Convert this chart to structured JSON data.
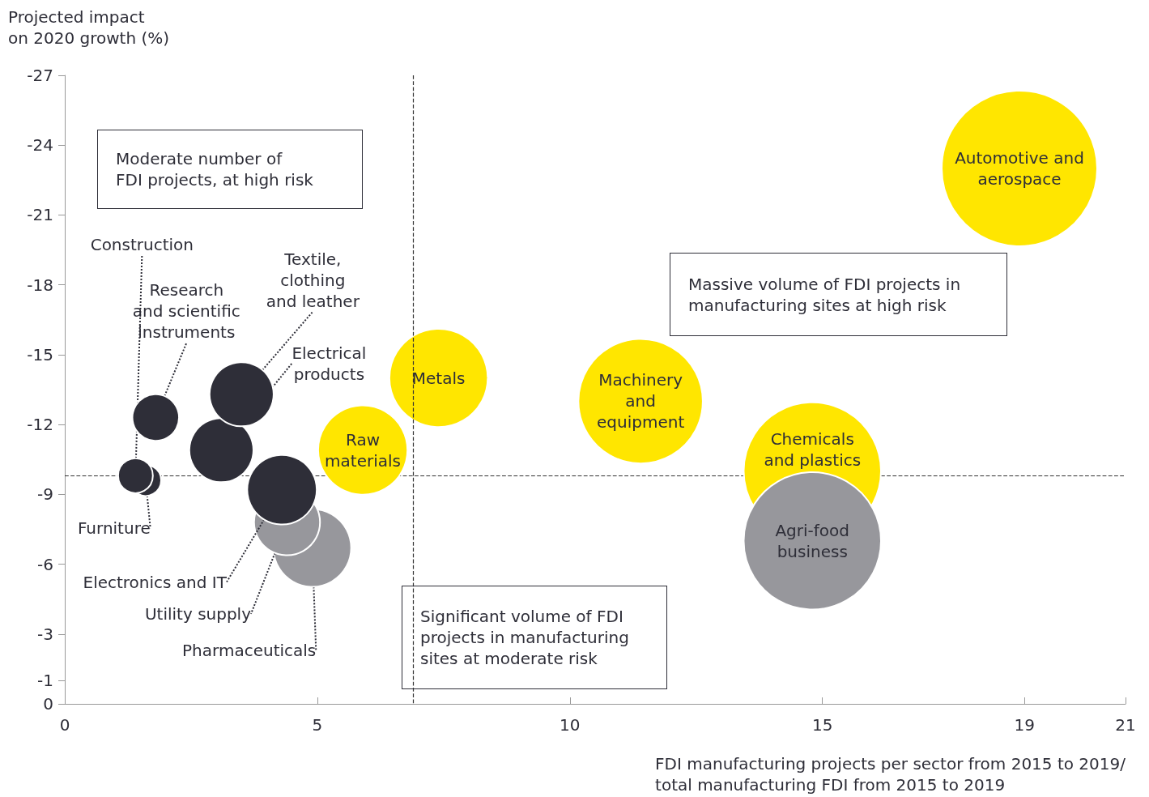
{
  "chart_data": {
    "type": "bubble",
    "xlabel": "FDI manufacturing projects per sector from 2015 to 2019/\ntotal manufacturing FDI from 2015 to 2019",
    "ylabel": "Projected impact\non 2020 growth (%)",
    "xlim": [
      0,
      21
    ],
    "xticks": [
      0,
      5,
      10,
      15,
      19,
      21
    ],
    "ylim": [
      0,
      -27
    ],
    "yticks": [
      0,
      -1,
      -3,
      -6,
      -9,
      -12,
      -15,
      -18,
      -21,
      -24,
      -27
    ],
    "grid": false,
    "legend": false,
    "ref_lines": [
      {
        "axis": "x",
        "value": 6.9,
        "line_style": "dashed",
        "color": "#333333"
      },
      {
        "axis": "y",
        "value": -9.8,
        "line_style": "dashed",
        "color": "#333333"
      }
    ],
    "annotations": [
      "Moderate number of\nFDI projects, at high risk",
      "Massive volume of FDI projects in\nmanufacturing sites at high risk",
      "Significant volume of FDI\nprojects in manufacturing\nsites at moderate risk"
    ],
    "series": [
      {
        "name": "Automotive and\naerospace",
        "color": "#ffe600",
        "x": [
          18.9
        ],
        "values": [
          -23.0
        ],
        "sizes": [
          1
        ]
      },
      {
        "name": "Metals",
        "color": "#ffe600",
        "x": [
          7.4
        ],
        "values": [
          -14.0
        ],
        "sizes": [
          0.4
        ]
      },
      {
        "name": "Machinery\nand\nequipment",
        "color": "#ffe600",
        "x": [
          11.4
        ],
        "values": [
          -13.0
        ],
        "sizes": [
          0.64
        ]
      },
      {
        "name": "Raw\nmaterials",
        "color": "#ffe600",
        "x": [
          5.9
        ],
        "values": [
          -10.9
        ],
        "sizes": [
          0.33
        ]
      },
      {
        "name": "Chemicals\nand plastics",
        "color": "#ffe600",
        "x": [
          14.8
        ],
        "values": [
          -10.0
        ],
        "sizes": [
          0.78
        ]
      },
      {
        "name": "Agri-food\nbusiness",
        "color": "#97979c",
        "x": [
          14.8
        ],
        "values": [
          -7.0
        ],
        "sizes": [
          0.78
        ]
      },
      {
        "name": "Pharmaceuticals",
        "color": "#97979c",
        "x": [
          4.9
        ],
        "values": [
          -6.7
        ],
        "sizes": [
          0.25
        ]
      },
      {
        "name": "Utility supply",
        "color": "#97979c",
        "x": [
          4.4
        ],
        "values": [
          -7.8
        ],
        "sizes": [
          0.18
        ]
      },
      {
        "name": "Furniture",
        "color": "#2e2e38",
        "x": [
          1.6
        ],
        "values": [
          -9.6
        ],
        "sizes": [
          0.04
        ]
      },
      {
        "name": "Construction",
        "color": "#2e2e38",
        "x": [
          1.4
        ],
        "values": [
          -9.8
        ],
        "sizes": [
          0.05
        ]
      },
      {
        "name": "Research\nand scientific\ninstruments",
        "color": "#2e2e38",
        "x": [
          1.8
        ],
        "values": [
          -12.3
        ],
        "sizes": [
          0.09
        ]
      },
      {
        "name": "Electrical\nproducts",
        "color": "#2e2e38",
        "x": [
          3.1
        ],
        "values": [
          -10.9
        ],
        "sizes": [
          0.17
        ]
      },
      {
        "name": "Textile,\nclothing\nand leather",
        "color": "#2e2e38",
        "x": [
          3.5
        ],
        "values": [
          -13.3
        ],
        "sizes": [
          0.17
        ]
      },
      {
        "name": "Electronics and IT",
        "color": "#2e2e38",
        "x": [
          4.3
        ],
        "values": [
          -9.2
        ],
        "sizes": [
          0.2
        ]
      }
    ]
  }
}
